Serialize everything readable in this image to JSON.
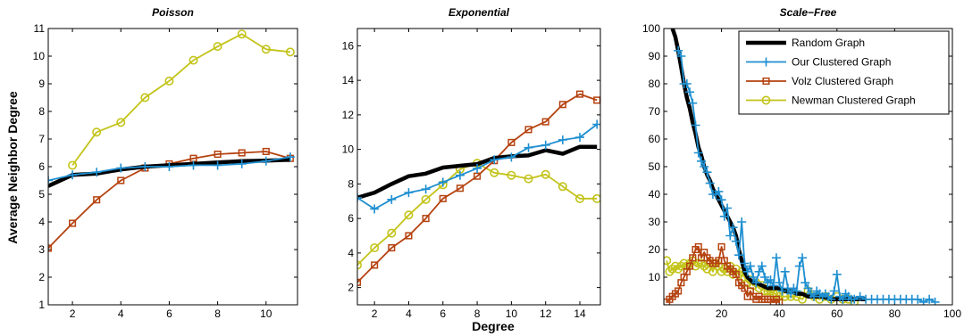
{
  "figure": {
    "ylabel": "Average Neighbor Degree",
    "xlabel": "Degree"
  },
  "colors": {
    "random": "#000000",
    "ours": "#1f8fd0",
    "volz": "#b5420f",
    "newman": "#c3c31a"
  },
  "chart_data": [
    {
      "type": "line",
      "title": "Poisson",
      "xlim": [
        1,
        11.3
      ],
      "ylim": [
        1,
        11
      ],
      "xticks": [
        2,
        4,
        6,
        8,
        10
      ],
      "yticks": [
        1,
        2,
        3,
        4,
        5,
        6,
        7,
        8,
        9,
        10,
        11
      ],
      "series": [
        {
          "key": "random",
          "x": [
            1,
            2,
            3,
            4,
            5,
            6,
            7,
            8,
            9,
            10,
            11
          ],
          "y": [
            5.3,
            5.7,
            5.75,
            5.9,
            6.0,
            6.05,
            6.1,
            6.15,
            6.2,
            6.22,
            6.25
          ]
        },
        {
          "key": "ours",
          "x": [
            1,
            2,
            3,
            4,
            5,
            6,
            7,
            8,
            9,
            10,
            11
          ],
          "y": [
            5.5,
            5.7,
            5.8,
            5.95,
            6.0,
            6.0,
            6.05,
            6.05,
            6.1,
            6.2,
            6.35
          ]
        },
        {
          "key": "volz",
          "x": [
            1,
            2,
            3,
            4,
            5,
            6,
            7,
            8,
            9,
            10,
            11
          ],
          "y": [
            3.05,
            3.95,
            4.8,
            5.5,
            5.95,
            6.1,
            6.3,
            6.45,
            6.5,
            6.55,
            6.3
          ]
        },
        {
          "key": "newman",
          "x": [
            2,
            3,
            4,
            5,
            6,
            7,
            8,
            9,
            10,
            11
          ],
          "y": [
            6.05,
            7.25,
            7.6,
            8.5,
            9.1,
            9.85,
            10.35,
            10.8,
            10.25,
            10.15
          ]
        }
      ]
    },
    {
      "type": "line",
      "title": "Exponential",
      "xlim": [
        1,
        15.2
      ],
      "ylim": [
        1,
        17
      ],
      "xticks": [
        2,
        4,
        6,
        8,
        10,
        12,
        14
      ],
      "yticks": [
        2,
        4,
        6,
        8,
        10,
        12,
        14,
        16
      ],
      "series": [
        {
          "key": "random",
          "x": [
            1,
            2,
            3,
            4,
            5,
            6,
            7,
            8,
            9,
            10,
            11,
            12,
            13,
            14,
            15
          ],
          "y": [
            7.2,
            7.5,
            8.0,
            8.45,
            8.6,
            8.95,
            9.05,
            9.15,
            9.5,
            9.6,
            9.65,
            9.95,
            9.75,
            10.15,
            10.15
          ]
        },
        {
          "key": "ours",
          "x": [
            1,
            2,
            3,
            4,
            5,
            6,
            7,
            8,
            9,
            10,
            11,
            12,
            13,
            14,
            15
          ],
          "y": [
            7.2,
            6.55,
            7.1,
            7.5,
            7.7,
            8.1,
            8.5,
            8.9,
            9.4,
            9.55,
            10.1,
            10.25,
            10.55,
            10.7,
            11.45
          ]
        },
        {
          "key": "volz",
          "x": [
            1,
            2,
            3,
            4,
            5,
            6,
            7,
            8,
            9,
            10,
            11,
            12,
            13,
            14,
            15
          ],
          "y": [
            2.3,
            3.3,
            4.3,
            5.0,
            6.0,
            7.15,
            7.75,
            8.45,
            9.35,
            10.4,
            11.15,
            11.6,
            12.6,
            13.2,
            12.85
          ]
        },
        {
          "key": "newman",
          "x": [
            1,
            2,
            3,
            4,
            5,
            6,
            7,
            8,
            9,
            10,
            11,
            12,
            13,
            14,
            15
          ],
          "y": [
            3.3,
            4.3,
            5.15,
            6.2,
            7.1,
            7.95,
            8.85,
            9.2,
            8.65,
            8.5,
            8.3,
            8.55,
            7.85,
            7.15,
            7.15
          ]
        }
      ]
    },
    {
      "type": "line",
      "title": "Scale−Free",
      "xlim": [
        0,
        100
      ],
      "ylim": [
        0,
        100
      ],
      "xticks": [
        20,
        40,
        60,
        80,
        100
      ],
      "yticks": [
        10,
        20,
        30,
        40,
        50,
        60,
        70,
        80,
        90,
        100
      ],
      "series": [
        {
          "key": "random",
          "x": [
            3,
            4,
            5,
            6,
            7,
            8,
            9,
            10,
            11,
            12,
            13,
            14,
            15,
            16,
            17,
            18,
            19,
            20,
            21,
            22,
            23,
            24,
            25,
            26,
            27,
            28,
            29,
            30,
            31,
            32,
            34,
            36,
            38,
            40,
            42,
            44,
            46,
            48,
            50,
            52,
            55,
            58,
            62,
            66,
            70
          ],
          "y": [
            100,
            97,
            92,
            86,
            80,
            75,
            71,
            66,
            62,
            57,
            54,
            50,
            47,
            45,
            42,
            40,
            38,
            36,
            34,
            32,
            30,
            28,
            25,
            20,
            16,
            12,
            10,
            9,
            8,
            8,
            7,
            6,
            6,
            6,
            5,
            5,
            4,
            4,
            3,
            3,
            3,
            2,
            2,
            2,
            2
          ]
        },
        {
          "key": "ours",
          "x": [
            5,
            6,
            7,
            8,
            9,
            10,
            11,
            12,
            13,
            14,
            15,
            16,
            17,
            18,
            19,
            20,
            21,
            22,
            23,
            24,
            25,
            26,
            27,
            28,
            29,
            30,
            31,
            32,
            33,
            34,
            35,
            36,
            37,
            38,
            39,
            40,
            41,
            42,
            43,
            44,
            45,
            46,
            47,
            48,
            49,
            50,
            51,
            52,
            53,
            54,
            55,
            56,
            57,
            58,
            59,
            60,
            61,
            62,
            63,
            64,
            65,
            66,
            68,
            70,
            72,
            74,
            76,
            78,
            80,
            82,
            84,
            86,
            88,
            90,
            92,
            94
          ],
          "y": [
            92,
            90,
            80,
            80,
            77,
            73,
            65,
            55,
            52,
            50,
            48,
            44,
            40,
            40,
            41,
            38,
            32,
            35,
            25,
            28,
            23,
            18,
            30,
            15,
            12,
            14,
            10,
            8,
            12,
            14,
            10,
            8,
            9,
            7,
            17,
            8,
            5,
            12,
            6,
            4,
            6,
            5,
            14,
            17,
            8,
            6,
            4,
            3,
            5,
            4,
            3,
            4,
            3,
            2,
            5,
            11,
            3,
            2,
            4,
            3,
            2,
            2,
            3,
            2,
            2,
            2,
            2,
            2,
            2,
            2,
            2,
            2,
            2,
            1,
            2,
            1
          ]
        },
        {
          "key": "volz",
          "x": [
            1,
            2,
            3,
            4,
            5,
            6,
            7,
            8,
            9,
            10,
            11,
            12,
            13,
            14,
            15,
            16,
            17,
            18,
            19,
            20,
            21,
            22,
            23,
            24,
            25,
            26,
            27,
            28,
            29,
            30,
            31,
            32,
            33,
            34,
            35,
            36,
            37,
            38,
            39,
            40
          ],
          "y": [
            1,
            2,
            3,
            4,
            5,
            8,
            10,
            12,
            14,
            17,
            20,
            21,
            17,
            19,
            17,
            16,
            15,
            15,
            16,
            21,
            16,
            14,
            13,
            12,
            11,
            8,
            7,
            6,
            3,
            5,
            3,
            2,
            3,
            2,
            2,
            2,
            2,
            1,
            2,
            1
          ]
        },
        {
          "key": "newman",
          "x": [
            1,
            2,
            3,
            4,
            5,
            6,
            7,
            8,
            9,
            10,
            11,
            12,
            13,
            14,
            15,
            16,
            17,
            18,
            19,
            20,
            21,
            22,
            23,
            24,
            25,
            26,
            27,
            28,
            29,
            30,
            31,
            32,
            33,
            34,
            35,
            36,
            37,
            38,
            39,
            40,
            42,
            44,
            46,
            48,
            50,
            52,
            54,
            56,
            58,
            60,
            62,
            64,
            66
          ],
          "y": [
            16,
            12,
            13,
            14,
            13,
            14,
            15,
            14,
            15,
            16,
            14,
            15,
            15,
            14,
            13,
            15,
            12,
            15,
            14,
            12,
            13,
            12,
            14,
            11,
            13,
            11,
            12,
            10,
            8,
            9,
            7,
            8,
            6,
            7,
            5,
            5,
            5,
            4,
            4,
            3,
            3,
            3,
            3,
            2,
            5,
            3,
            2,
            3,
            2,
            3,
            2,
            2,
            1
          ]
        }
      ]
    }
  ],
  "legend": {
    "placement": "top-right",
    "entries": [
      {
        "key": "random",
        "label": "Random Graph"
      },
      {
        "key": "ours",
        "label": "Our Clustered Graph"
      },
      {
        "key": "volz",
        "label": "Volz Clustered Graph"
      },
      {
        "key": "newman",
        "label": "Newman Clustered Graph"
      }
    ]
  }
}
